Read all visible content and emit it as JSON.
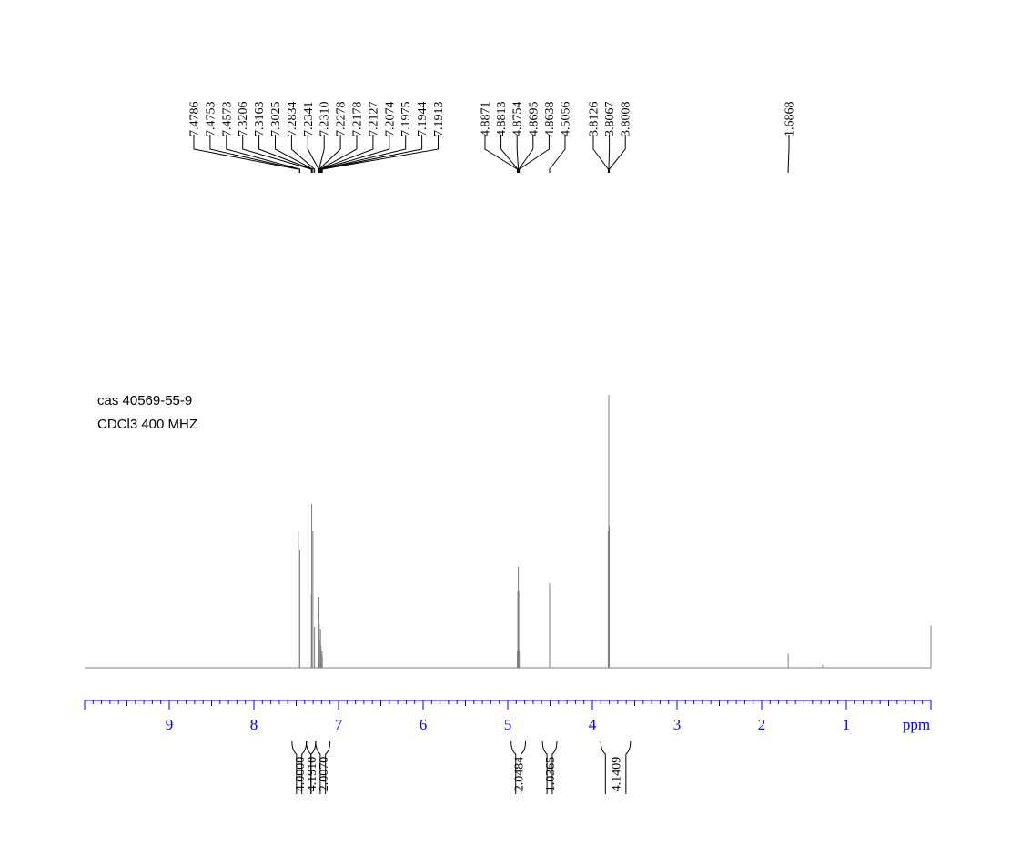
{
  "sample": {
    "line1": "cas 40569-55-9",
    "line2": "CDCl3 400 MHZ"
  },
  "colors": {
    "axis": "#0000ff",
    "spectrum": "#808080",
    "text": "#000000"
  },
  "chart_data": {
    "type": "line",
    "xlabel": "ppm",
    "xlim": [
      10.0,
      0.0
    ],
    "x_reversed": true,
    "x_ticks": [
      "9",
      "8",
      "7",
      "6",
      "5",
      "4",
      "3",
      "2",
      "1"
    ],
    "x_tick_values": [
      9,
      8,
      7,
      6,
      5,
      4,
      3,
      2,
      1
    ],
    "peak_groups": [
      {
        "labels": [
          "7.4786",
          "7.4753",
          "7.4573",
          "7.3206",
          "7.3163",
          "7.3025",
          "7.2834",
          "7.2341",
          "7.2310",
          "7.2278",
          "7.2178",
          "7.2127",
          "7.2074",
          "7.1975",
          "7.1944",
          "7.1913"
        ]
      },
      {
        "labels": [
          "4.8871",
          "4.8813",
          "4.8754",
          "4.8695",
          "4.8638",
          "4.5056"
        ]
      },
      {
        "labels": [
          "3.8126",
          "3.8067",
          "3.8008"
        ]
      },
      {
        "labels": [
          "1.6868"
        ]
      }
    ],
    "peaks": [
      {
        "ppm": 7.4786,
        "height": 0.46
      },
      {
        "ppm": 7.4753,
        "height": 0.5
      },
      {
        "ppm": 7.4573,
        "height": 0.43
      },
      {
        "ppm": 7.3206,
        "height": 0.27
      },
      {
        "ppm": 7.3163,
        "height": 0.6
      },
      {
        "ppm": 7.3025,
        "height": 0.5
      },
      {
        "ppm": 7.2834,
        "height": 0.15
      },
      {
        "ppm": 7.2341,
        "height": 0.2
      },
      {
        "ppm": 7.231,
        "height": 0.26
      },
      {
        "ppm": 7.2278,
        "height": 0.16
      },
      {
        "ppm": 7.2178,
        "height": 0.1
      },
      {
        "ppm": 7.2127,
        "height": 0.14
      },
      {
        "ppm": 7.2074,
        "height": 0.08
      },
      {
        "ppm": 7.1975,
        "height": 0.05
      },
      {
        "ppm": 7.1944,
        "height": 0.06
      },
      {
        "ppm": 7.1913,
        "height": 0.04
      },
      {
        "ppm": 4.8871,
        "height": 0.06
      },
      {
        "ppm": 4.8813,
        "height": 0.28
      },
      {
        "ppm": 4.8754,
        "height": 0.37
      },
      {
        "ppm": 4.8695,
        "height": 0.28
      },
      {
        "ppm": 4.8638,
        "height": 0.06
      },
      {
        "ppm": 4.5056,
        "height": 0.31
      },
      {
        "ppm": 3.8126,
        "height": 0.5
      },
      {
        "ppm": 3.8067,
        "height": 1.0
      },
      {
        "ppm": 3.8008,
        "height": 0.52
      },
      {
        "ppm": 1.6868,
        "height": 0.052
      },
      {
        "ppm": 1.28,
        "height": 0.01
      },
      {
        "ppm": 0.0,
        "height": 0.155
      }
    ],
    "integrals": [
      {
        "label": "4.0000",
        "from": 7.55,
        "to": 7.38
      },
      {
        "label": "4.1910",
        "from": 7.38,
        "to": 7.27
      },
      {
        "label": "2.0070",
        "from": 7.27,
        "to": 7.1
      },
      {
        "label": "2.0484",
        "from": 4.96,
        "to": 4.79
      },
      {
        "label": "1.0365",
        "from": 4.59,
        "to": 4.42
      },
      {
        "label": "4.1409",
        "from": 3.9,
        "to": 3.55
      }
    ]
  }
}
